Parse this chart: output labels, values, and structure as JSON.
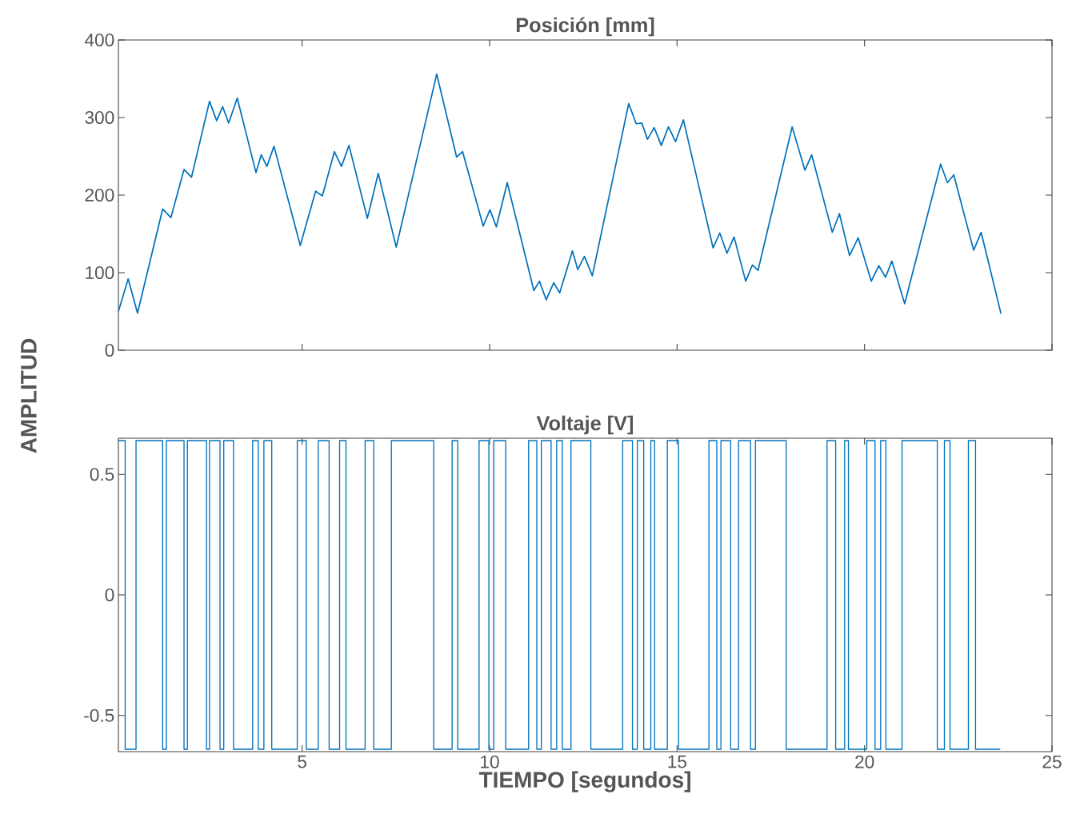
{
  "chart_data": [
    {
      "type": "line",
      "title": "Posición [mm]",
      "ylabel": "AMPLITUD",
      "tick_labels": "y",
      "xlim": [
        0.1,
        25
      ],
      "ylim": [
        0,
        400
      ],
      "xticks": [
        5,
        10,
        15,
        20,
        25
      ],
      "yticks": [
        0,
        100,
        200,
        300,
        400
      ],
      "series": [
        {
          "color": "#0072bd",
          "x": [
            0.1,
            0.36,
            0.61,
            1.28,
            1.5,
            1.85,
            2.05,
            2.53,
            2.72,
            2.88,
            3.04,
            3.27,
            3.77,
            3.91,
            4.06,
            4.25,
            4.95,
            5.36,
            5.54,
            5.86,
            6.05,
            6.25,
            6.74,
            7.03,
            7.51,
            8.59,
            9.12,
            9.28,
            9.83,
            10.01,
            10.18,
            10.47,
            11.18,
            11.33,
            11.51,
            11.71,
            11.87,
            12.21,
            12.35,
            12.53,
            12.74,
            13.71,
            13.91,
            14.06,
            14.21,
            14.39,
            14.58,
            14.77,
            14.96,
            15.17,
            15.96,
            16.14,
            16.33,
            16.52,
            16.83,
            17.01,
            17.16,
            18.07,
            18.41,
            18.59,
            19.14,
            19.33,
            19.6,
            19.83,
            20.18,
            20.38,
            20.56,
            20.73,
            21.07,
            22.03,
            22.21,
            22.38,
            22.91,
            23.11,
            23.64
          ],
          "values": [
            50,
            92,
            48,
            182,
            171,
            233,
            223,
            321,
            296,
            314,
            293,
            325,
            229,
            252,
            237,
            263,
            135,
            205,
            199,
            256,
            237,
            264,
            170,
            228,
            133,
            356,
            249,
            256,
            160,
            181,
            159,
            216,
            77,
            89,
            65,
            87,
            74,
            128,
            104,
            121,
            96,
            318,
            292,
            293,
            272,
            287,
            264,
            288,
            269,
            297,
            132,
            151,
            125,
            146,
            89,
            110,
            103,
            288,
            232,
            252,
            152,
            176,
            122,
            145,
            89,
            109,
            94,
            115,
            60,
            240,
            216,
            226,
            129,
            152,
            47
          ]
        }
      ]
    },
    {
      "type": "step",
      "title": "Voltaje [V]",
      "xlabel": "TIEMPO [segundos]",
      "xlim": [
        0.1,
        25
      ],
      "ylim": [
        -0.65,
        0.65
      ],
      "xticks": [
        5,
        10,
        15,
        20,
        25
      ],
      "yticks": [
        -0.5,
        0,
        0.5
      ],
      "series": [
        {
          "color": "#0072bd",
          "x": [
            0.1,
            0.28,
            0.57,
            1.28,
            1.38,
            1.85,
            1.94,
            2.45,
            2.53,
            2.81,
            2.91,
            3.17,
            3.68,
            3.83,
            3.98,
            4.19,
            4.87,
            5.11,
            5.43,
            5.72,
            6.0,
            6.17,
            6.68,
            6.91,
            7.38,
            8.51,
            9.0,
            9.15,
            9.72,
            9.98,
            10.11,
            10.43,
            11.04,
            11.26,
            11.38,
            11.64,
            11.79,
            11.94,
            12.17,
            12.7,
            13.55,
            13.81,
            13.94,
            14.11,
            14.3,
            14.4,
            14.74,
            15.04,
            15.85,
            16.06,
            16.17,
            16.43,
            16.64,
            16.96,
            17.09,
            17.91,
            19.0,
            19.23,
            19.47,
            19.57,
            20.06,
            20.28,
            20.43,
            20.57,
            21.0,
            21.94,
            22.13,
            22.28,
            22.77,
            22.96,
            23.62
          ],
          "values": [
            0.64,
            -0.64,
            0.64,
            -0.64,
            0.64,
            -0.64,
            0.64,
            -0.64,
            0.64,
            -0.64,
            0.64,
            -0.64,
            0.64,
            -0.64,
            0.64,
            -0.64,
            0.64,
            -0.64,
            0.64,
            -0.64,
            0.64,
            -0.64,
            0.64,
            -0.64,
            0.64,
            -0.64,
            0.64,
            -0.64,
            0.64,
            -0.64,
            0.64,
            -0.64,
            0.64,
            -0.64,
            0.64,
            -0.64,
            0.64,
            -0.64,
            0.64,
            -0.64,
            0.64,
            -0.64,
            0.64,
            -0.64,
            0.64,
            -0.64,
            0.64,
            -0.64,
            0.64,
            -0.64,
            0.64,
            -0.64,
            0.64,
            -0.64,
            0.64,
            -0.64,
            0.64,
            -0.64,
            0.64,
            -0.64,
            0.64,
            -0.64,
            0.64,
            -0.64,
            0.64,
            -0.64,
            0.64,
            -0.64,
            0.64,
            -0.64,
            -0.64
          ]
        }
      ]
    }
  ]
}
